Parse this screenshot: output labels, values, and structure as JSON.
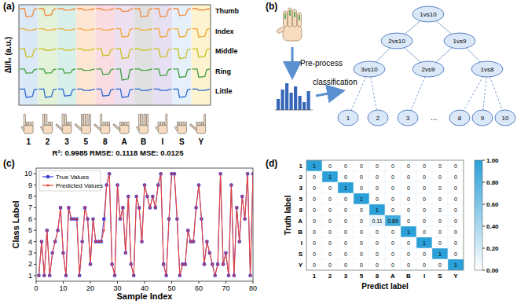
{
  "panel_labels": [
    "(a)",
    "(b)",
    "(c)",
    "(d)"
  ],
  "signals": {
    "y_label": "ΔI/I₀ (a.u.)",
    "fingers": [
      {
        "name": "Thumb",
        "color": "#f08a3c"
      },
      {
        "name": "Index",
        "color": "#f0a830"
      },
      {
        "name": "Middle",
        "color": "#c8c020"
      },
      {
        "name": "Ring",
        "color": "#40a040"
      },
      {
        "name": "Little",
        "color": "#2a6ad0"
      }
    ],
    "gestures": [
      "1",
      "2",
      "3",
      "5",
      "8",
      "A",
      "B",
      "I",
      "S",
      "Y"
    ],
    "band_colors": [
      "#dbe9f6",
      "#e3f2d9",
      "#d9f0ea",
      "#fde6d3",
      "#f9dde3",
      "#ece0f1",
      "#e0e0e0",
      "#e6e0f2",
      "#e6f0fa",
      "#fdf3d0"
    ],
    "drops": [
      [
        0.6,
        0.5,
        0.1,
        0.1,
        0.1,
        0.2,
        0.6,
        0.6,
        0.5,
        0.1
      ],
      [
        0.1,
        0.1,
        0.1,
        0.1,
        0.1,
        0.6,
        0.1,
        0.6,
        0.6,
        0.6
      ],
      [
        0.6,
        0.1,
        0.1,
        0.1,
        0.5,
        0.7,
        0.1,
        0.6,
        0.7,
        0.6
      ],
      [
        0.3,
        0.3,
        0.3,
        0.1,
        0.4,
        0.8,
        0.1,
        0.5,
        0.6,
        0.6
      ],
      [
        0.6,
        0.6,
        0.5,
        0.1,
        0.5,
        0.6,
        0.1,
        0.1,
        0.6,
        0.1
      ]
    ]
  },
  "diagram": {
    "pre_process": "Pre-process",
    "classification": "classification",
    "nodes": [
      "1vs10",
      "2vs10",
      "1vs9",
      "3vs10",
      "2vs9",
      "1vs8"
    ],
    "leaves": [
      "1",
      "2",
      "3",
      "8",
      "9",
      "10"
    ],
    "ellipsis": "..."
  },
  "chart_data": [
    {
      "type": "line",
      "annotations": [
        "R²: 0.9985   RMSE: 0.1118   MSE: 0.0125"
      ],
      "x_label": "Sample Index",
      "y_label": "Class Label",
      "x": [
        1,
        2,
        3,
        4,
        5,
        6,
        7,
        8,
        9,
        10,
        11,
        12,
        13,
        14,
        15,
        16,
        17,
        18,
        19,
        20,
        21,
        22,
        23,
        24,
        25,
        26,
        27,
        28,
        29,
        30,
        31,
        32,
        33,
        34,
        35,
        36,
        37,
        38,
        39,
        40,
        41,
        42,
        43,
        44,
        45,
        46,
        47,
        48,
        49,
        50,
        51,
        52,
        53,
        54,
        55,
        56,
        57,
        58,
        59,
        60,
        61,
        62,
        63,
        64,
        65,
        66,
        67,
        68,
        69,
        70,
        71,
        72,
        73,
        74,
        75,
        76,
        77,
        78,
        79,
        80
      ],
      "series": [
        {
          "name": "True Values",
          "color": "#3b3bd6",
          "marker": "circle",
          "values": [
            1,
            4,
            1,
            5,
            1,
            3,
            4,
            5,
            7,
            3,
            1,
            7,
            6,
            6,
            6,
            1,
            4,
            7,
            6,
            2,
            6,
            4,
            4,
            4,
            6,
            9,
            10,
            2,
            1,
            9,
            6,
            7,
            3,
            8,
            2,
            1,
            8,
            7,
            4,
            9,
            8,
            7,
            8,
            7,
            9,
            10,
            2,
            1,
            6,
            10,
            10,
            6,
            1,
            2,
            2,
            5,
            4,
            4,
            7,
            9,
            6,
            2,
            4,
            3,
            2,
            1,
            2,
            10,
            2,
            3,
            1,
            9,
            1,
            7,
            4,
            8,
            6,
            10,
            1,
            10
          ]
        },
        {
          "name": "Predicted Values",
          "color": "#e8403a",
          "marker": "dot",
          "values": [
            1,
            4,
            1,
            5,
            1,
            3,
            4,
            5,
            7,
            3,
            1,
            7,
            6,
            6,
            6,
            1,
            4,
            7,
            6,
            2,
            6,
            4,
            4,
            4,
            5,
            9,
            10,
            2,
            1,
            9,
            6,
            7,
            3,
            8,
            2,
            1,
            8,
            7,
            4,
            9,
            8,
            7,
            8,
            7,
            9,
            10,
            2,
            1,
            6,
            10,
            10,
            6,
            1,
            2,
            2,
            5,
            4,
            4,
            7,
            9,
            6,
            2,
            4,
            3,
            2,
            1,
            2,
            10,
            2,
            3,
            1,
            9,
            1,
            7,
            4,
            8,
            6,
            10,
            1,
            10
          ]
        }
      ],
      "xlim": [
        0,
        80
      ],
      "xticks": [
        0,
        10,
        20,
        30,
        40,
        50,
        60,
        70,
        80
      ],
      "ylim": [
        0.5,
        10.5
      ],
      "yticks": [
        1,
        2,
        3,
        4,
        5,
        6,
        7,
        8,
        9,
        10
      ],
      "legend": "top-left"
    },
    {
      "type": "heatmap",
      "x_label": "Predict label",
      "y_label": "Truth label",
      "categories": [
        "1",
        "2",
        "3",
        "5",
        "8",
        "A",
        "B",
        "I",
        "S",
        "Y"
      ],
      "color": "#2a9fd8",
      "data_labels": true,
      "cells": [
        [
          1,
          0,
          0,
          0,
          0,
          0,
          0,
          0,
          0,
          0
        ],
        [
          0,
          1,
          0,
          0,
          0,
          0,
          0,
          0,
          0,
          0
        ],
        [
          0,
          0,
          1,
          0,
          0,
          0,
          0,
          0,
          0,
          0
        ],
        [
          0,
          0,
          0,
          1,
          0,
          0,
          0,
          0,
          0,
          0
        ],
        [
          0,
          0,
          0,
          0,
          1,
          0,
          0,
          0,
          0,
          0
        ],
        [
          0,
          0,
          0,
          0,
          0.11,
          0.89,
          0,
          0,
          0,
          0
        ],
        [
          0,
          0,
          0,
          0,
          0,
          0,
          1,
          0,
          0,
          0
        ],
        [
          0,
          0,
          0,
          0,
          0,
          0,
          0,
          1,
          0,
          0
        ],
        [
          0,
          0,
          0,
          0,
          0,
          0,
          0,
          0,
          1,
          0
        ],
        [
          0,
          0,
          0,
          0,
          0,
          0,
          0,
          0,
          0,
          1
        ]
      ],
      "colorbar_range": [
        0,
        1
      ],
      "colorbar_ticks": [
        {
          "value": 0,
          "label": "0.00"
        },
        {
          "value": 0.2,
          "label": "0.20"
        },
        {
          "value": 0.4,
          "label": "0.40"
        },
        {
          "value": 0.6,
          "label": "0.60"
        },
        {
          "value": 0.8,
          "label": "0.80"
        },
        {
          "value": 1,
          "label": "1.00"
        }
      ]
    }
  ]
}
